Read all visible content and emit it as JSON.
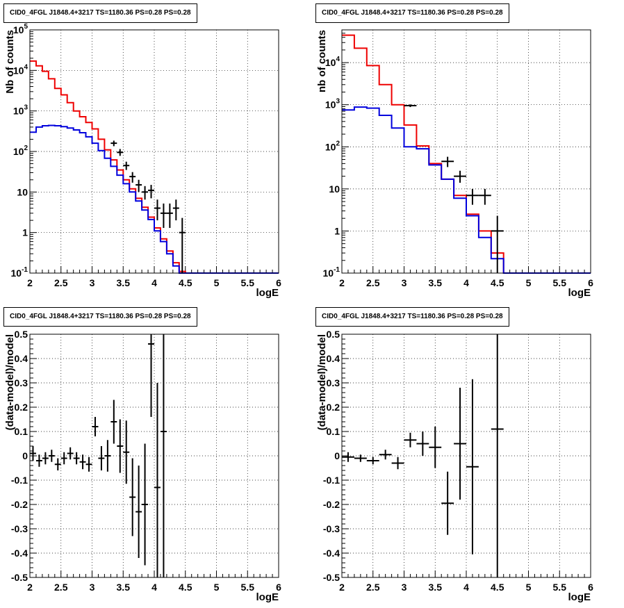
{
  "colors": {
    "data": "#000000",
    "total_model": "#ee0000",
    "source_model": "#0000dd",
    "grid": "#000000"
  },
  "chart_data": [
    {
      "type": "histogram",
      "panel": "top-left",
      "title": "CID0_4FGL J1848.4+3217 TS=1180.36 PS=0.28 PS=0.28",
      "xlabel": "logE",
      "ylabel": "Nb of counts",
      "xlim": [
        2,
        6
      ],
      "ylim": [
        0.1,
        100000
      ],
      "yscale": "log",
      "grid": true,
      "x_ticks": [
        "2",
        "2.5",
        "3",
        "3.5",
        "4",
        "4.5",
        "5",
        "5.5",
        "6"
      ],
      "y_ticks": [
        {
          "v": 0.1,
          "label": "10^-1"
        },
        {
          "v": 1,
          "label": "1"
        },
        {
          "v": 10,
          "label": "10"
        },
        {
          "v": 100,
          "label": "10^2"
        },
        {
          "v": 1000,
          "label": "10^3"
        },
        {
          "v": 10000,
          "label": "10^4"
        },
        {
          "v": 100000,
          "label": "10^5"
        }
      ],
      "bin_width": 0.1,
      "bin_edges_start": 2.0,
      "series": [
        {
          "role": "total-model",
          "color": "#ee0000",
          "values": [
            17000,
            13000,
            9500,
            6200,
            3600,
            2500,
            1600,
            1000,
            720,
            520,
            360,
            200,
            110,
            62,
            35,
            20,
            12,
            7,
            4.2,
            2.4,
            1.3,
            0.7,
            0.35,
            0.18,
            0.11,
            0.1,
            0.1,
            0.1,
            0.1,
            0.1,
            0.1,
            0.1,
            0.1,
            0.1,
            0.1,
            0.1,
            0.1,
            0.1,
            0.1,
            0.1
          ]
        },
        {
          "role": "source-model",
          "color": "#0000dd",
          "values": [
            300,
            400,
            430,
            440,
            430,
            410,
            380,
            340,
            290,
            230,
            160,
            105,
            68,
            43,
            26,
            16,
            10,
            6,
            3.6,
            2.1,
            1.1,
            0.6,
            0.3,
            0.15,
            0.1,
            0.1,
            0.1,
            0.1,
            0.1,
            0.1,
            0.1,
            0.1,
            0.1,
            0.1,
            0.1,
            0.1,
            0.1,
            0.1,
            0.1,
            0.1
          ]
        }
      ],
      "points": [
        {
          "x": 3.35,
          "y": 160,
          "ylo": 135,
          "yhi": 185
        },
        {
          "x": 3.45,
          "y": 95,
          "ylo": 78,
          "yhi": 115
        },
        {
          "x": 3.55,
          "y": 45,
          "ylo": 35,
          "yhi": 56
        },
        {
          "x": 3.65,
          "y": 24,
          "ylo": 17,
          "yhi": 31
        },
        {
          "x": 3.75,
          "y": 15,
          "ylo": 10,
          "yhi": 20
        },
        {
          "x": 3.85,
          "y": 10,
          "ylo": 6.5,
          "yhi": 14
        },
        {
          "x": 3.95,
          "y": 11,
          "ylo": 7,
          "yhi": 15
        },
        {
          "x": 4.05,
          "y": 4,
          "ylo": 2,
          "yhi": 6.5
        },
        {
          "x": 4.15,
          "y": 3,
          "ylo": 1.3,
          "yhi": 5.2
        },
        {
          "x": 4.25,
          "y": 3,
          "ylo": 1.3,
          "yhi": 5.2
        },
        {
          "x": 4.35,
          "y": 4,
          "ylo": 2,
          "yhi": 6.5
        },
        {
          "x": 4.45,
          "y": 1,
          "ylo": 0.1,
          "yhi": 2.3
        }
      ]
    },
    {
      "type": "histogram",
      "panel": "top-right",
      "title": "CID0_4FGL J1848.4+3217 TS=1180.36 PS=0.28 PS=0.28",
      "xlabel": "logE",
      "ylabel": "nb of counts",
      "xlim": [
        2,
        6
      ],
      "ylim": [
        0.1,
        60000
      ],
      "yscale": "log",
      "grid": true,
      "x_ticks": [
        "2",
        "2.5",
        "3",
        "3.5",
        "4",
        "4.5",
        "5",
        "5.5",
        "6"
      ],
      "y_ticks": [
        {
          "v": 0.1,
          "label": "10^-1"
        },
        {
          "v": 1,
          "label": "1"
        },
        {
          "v": 10,
          "label": "10"
        },
        {
          "v": 100,
          "label": "10^2"
        },
        {
          "v": 1000,
          "label": "10^3"
        },
        {
          "v": 10000,
          "label": "10^4"
        }
      ],
      "bin_width": 0.2,
      "bin_edges_start": 2.0,
      "series": [
        {
          "role": "total-model",
          "color": "#ee0000",
          "values": [
            45000,
            22000,
            8500,
            3000,
            1000,
            330,
            105,
            40,
            17,
            7,
            2.5,
            1,
            0.3,
            0.1,
            0.1,
            0.1,
            0.1,
            0.1,
            0.1,
            0.1
          ]
        },
        {
          "role": "source-model",
          "color": "#0000dd",
          "values": [
            750,
            880,
            830,
            560,
            280,
            100,
            90,
            37,
            17,
            6,
            2.3,
            0.7,
            0.22,
            0.1,
            0.1,
            0.1,
            0.1,
            0.1,
            0.1,
            0.1
          ]
        }
      ],
      "points": [
        {
          "x": 3.1,
          "y": 950,
          "ylo": 880,
          "yhi": 1020
        },
        {
          "x": 3.7,
          "y": 45,
          "ylo": 33,
          "yhi": 58
        },
        {
          "x": 3.9,
          "y": 20,
          "ylo": 14,
          "yhi": 27
        },
        {
          "x": 4.1,
          "y": 7,
          "ylo": 4.2,
          "yhi": 10
        },
        {
          "x": 4.3,
          "y": 7,
          "ylo": 4.2,
          "yhi": 10
        },
        {
          "x": 4.5,
          "y": 1,
          "ylo": 0.1,
          "yhi": 2.3
        }
      ]
    },
    {
      "type": "scatter",
      "panel": "bottom-left",
      "title": "CID0_4FGL J1848.4+3217 TS=1180.36 PS=0.28 PS=0.28",
      "xlabel": "logE",
      "ylabel": "(data-model)/model",
      "xlim": [
        2,
        6
      ],
      "ylim": [
        -0.5,
        0.5
      ],
      "yscale": "linear",
      "grid": true,
      "x_ticks": [
        "2",
        "2.5",
        "3",
        "3.5",
        "4",
        "4.5",
        "5",
        "5.5",
        "6"
      ],
      "y_ticks": [
        {
          "v": -0.5,
          "label": "-0.5"
        },
        {
          "v": -0.4,
          "label": "-0.4"
        },
        {
          "v": -0.3,
          "label": "-0.3"
        },
        {
          "v": -0.2,
          "label": "-0.2"
        },
        {
          "v": -0.1,
          "label": "-0.1"
        },
        {
          "v": 0,
          "label": "0"
        },
        {
          "v": 0.1,
          "label": "0.1"
        },
        {
          "v": 0.2,
          "label": "0.2"
        },
        {
          "v": 0.3,
          "label": "0.3"
        },
        {
          "v": 0.4,
          "label": "0.4"
        },
        {
          "v": 0.5,
          "label": "0.5"
        }
      ],
      "x_half_width": 0.05,
      "points": [
        {
          "x": 2.05,
          "y": 0.01,
          "err": 0.03
        },
        {
          "x": 2.15,
          "y": -0.02,
          "err": 0.025
        },
        {
          "x": 2.25,
          "y": -0.01,
          "err": 0.025
        },
        {
          "x": 2.35,
          "y": 0.0,
          "err": 0.025
        },
        {
          "x": 2.45,
          "y": -0.035,
          "err": 0.025
        },
        {
          "x": 2.55,
          "y": -0.01,
          "err": 0.025
        },
        {
          "x": 2.65,
          "y": 0.01,
          "err": 0.025
        },
        {
          "x": 2.75,
          "y": -0.01,
          "err": 0.025
        },
        {
          "x": 2.85,
          "y": -0.025,
          "err": 0.03
        },
        {
          "x": 2.95,
          "y": -0.035,
          "err": 0.03
        },
        {
          "x": 3.05,
          "y": 0.12,
          "err": 0.04
        },
        {
          "x": 3.15,
          "y": -0.01,
          "err": 0.05
        },
        {
          "x": 3.25,
          "y": 0.0,
          "err": 0.065
        },
        {
          "x": 3.35,
          "y": 0.14,
          "err": 0.09
        },
        {
          "x": 3.45,
          "y": 0.04,
          "err": 0.11
        },
        {
          "x": 3.55,
          "y": 0.015,
          "err": 0.13
        },
        {
          "x": 3.65,
          "y": -0.17,
          "err": 0.16
        },
        {
          "x": 3.75,
          "y": -0.23,
          "err": 0.19
        },
        {
          "x": 3.85,
          "y": -0.2,
          "err": 0.25
        },
        {
          "x": 3.95,
          "y": 0.46,
          "err": 0.3
        },
        {
          "x": 4.05,
          "y": -0.13,
          "err": 0.43
        },
        {
          "x": 4.15,
          "y": 0.1,
          "err": 0.62
        }
      ]
    },
    {
      "type": "scatter",
      "panel": "bottom-right",
      "title": "CID0_4FGL J1848.4+3217 TS=1180.36 PS=0.28 PS=0.28",
      "xlabel": "logE",
      "ylabel": "(data-model)/model",
      "xlim": [
        2,
        6
      ],
      "ylim": [
        -0.5,
        0.5
      ],
      "yscale": "linear",
      "grid": true,
      "x_ticks": [
        "2",
        "2.5",
        "3",
        "3.5",
        "4",
        "4.5",
        "5",
        "5.5",
        "6"
      ],
      "y_ticks": [
        {
          "v": -0.5,
          "label": "-0.5"
        },
        {
          "v": -0.4,
          "label": "-0.4"
        },
        {
          "v": -0.3,
          "label": "-0.3"
        },
        {
          "v": -0.2,
          "label": "-0.2"
        },
        {
          "v": -0.1,
          "label": "-0.1"
        },
        {
          "v": 0,
          "label": "0"
        },
        {
          "v": 0.1,
          "label": "0.1"
        },
        {
          "v": 0.2,
          "label": "0.2"
        },
        {
          "v": 0.3,
          "label": "0.3"
        },
        {
          "v": 0.4,
          "label": "0.4"
        },
        {
          "v": 0.5,
          "label": "0.5"
        }
      ],
      "x_half_width": 0.1,
      "points": [
        {
          "x": 2.1,
          "y": -0.005,
          "err": 0.02
        },
        {
          "x": 2.3,
          "y": -0.01,
          "err": 0.015
        },
        {
          "x": 2.5,
          "y": -0.02,
          "err": 0.015
        },
        {
          "x": 2.7,
          "y": 0.005,
          "err": 0.02
        },
        {
          "x": 2.9,
          "y": -0.03,
          "err": 0.025
        },
        {
          "x": 3.1,
          "y": 0.065,
          "err": 0.03
        },
        {
          "x": 3.3,
          "y": 0.05,
          "err": 0.05
        },
        {
          "x": 3.5,
          "y": 0.035,
          "err": 0.085
        },
        {
          "x": 3.7,
          "y": -0.195,
          "err": 0.13
        },
        {
          "x": 3.9,
          "y": 0.05,
          "err": 0.23
        },
        {
          "x": 4.1,
          "y": -0.045,
          "err": 0.36
        },
        {
          "x": 4.5,
          "y": 0.11,
          "err": 0.62
        }
      ]
    }
  ]
}
